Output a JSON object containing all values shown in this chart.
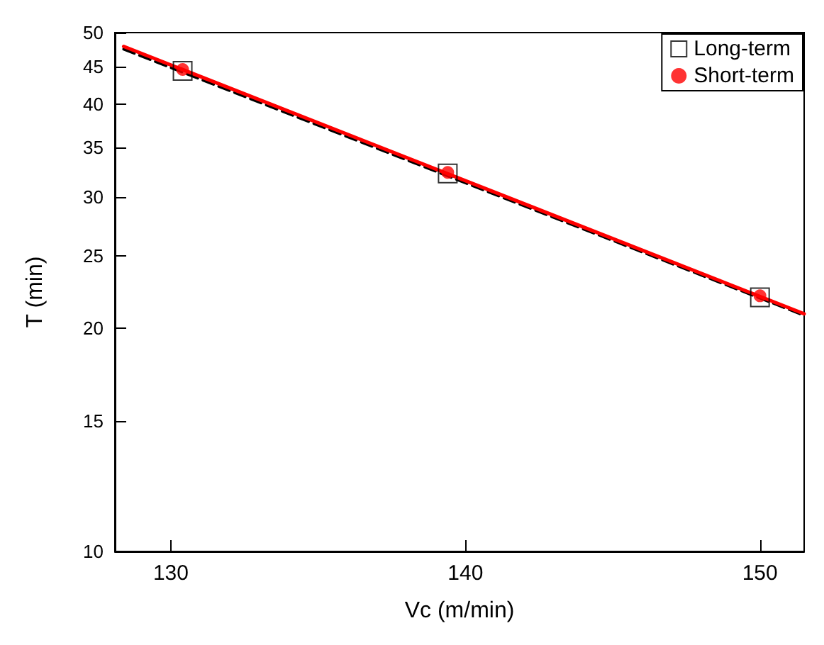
{
  "chart_data": {
    "type": "scatter",
    "xlabel": "Vc (m/min)",
    "ylabel": "T (min)",
    "log": "y",
    "xlim": [
      128.1,
      151.5
    ],
    "xticks": [
      130,
      140,
      150
    ],
    "ylim": [
      10,
      50
    ],
    "yticks": [
      10,
      15,
      20,
      25,
      30,
      35,
      40,
      45,
      50
    ],
    "grid": false,
    "legend": "top right",
    "series": [
      {
        "name": "Long-term",
        "marker": "square",
        "color": "#000000",
        "x": [
          130.4,
          139.4,
          150.0
        ],
        "values": [
          44.4,
          32.3,
          22.0
        ]
      },
      {
        "name": "Short-term",
        "marker": "circle",
        "color": "#ff0000",
        "x": [
          130.4,
          139.4,
          150.0
        ],
        "values": [
          44.6,
          32.4,
          22.1
        ]
      },
      {
        "type": "line",
        "line_style": "dashed",
        "color": "#000000",
        "x": [
          128.4,
          151.5
        ],
        "values": [
          47.5,
          20.8
        ]
      },
      {
        "type": "line",
        "line_style": "solid",
        "color": "#ff0000",
        "x": [
          128.4,
          151.5
        ],
        "values": [
          47.9,
          20.9
        ]
      }
    ]
  }
}
